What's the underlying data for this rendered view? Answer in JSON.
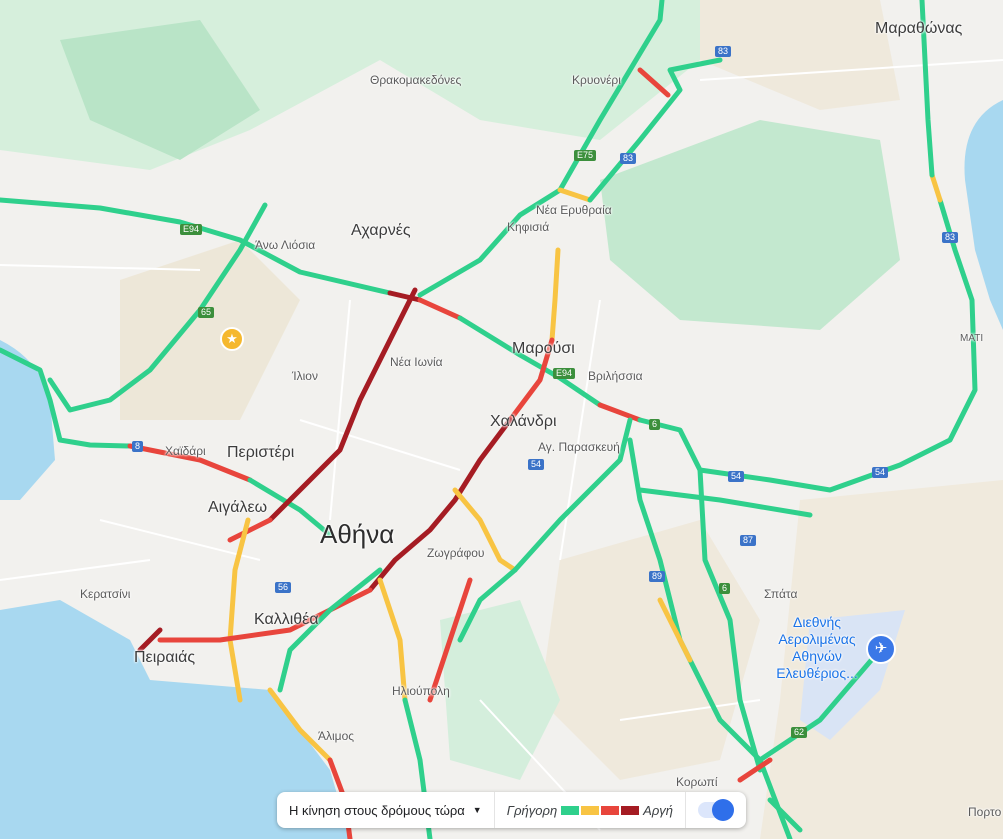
{
  "colors": {
    "fast": "#2fd08c",
    "moderate": "#f8c443",
    "slow": "#e8453c",
    "very_slow": "#a51c23",
    "water": "#a8d8f0",
    "park": "#c5ead2",
    "land": "#f0eadd"
  },
  "labels": {
    "marathonas": "Μαραθώνας",
    "thrakomakedones": "Θρακομακεδόνες",
    "kryoneri": "Κρυονέρι",
    "nea_erythraia": "Νέα Ερυθραία",
    "kifisia": "Κηφισιά",
    "acharnes": "Αχαρνές",
    "ano_liosia": "Άνω Λιόσια",
    "marousi": "Μαρούσι",
    "nea_ionia": "Νέα Ιωνία",
    "ilion": "Ίλιον",
    "vrilissia": "Βριλήσσια",
    "mati": "ΜΑΤΙ",
    "chalandri": "Χαλάνδρι",
    "ag_paraskevi": "Αγ. Παρασκευή",
    "chaidari": "Χαϊδάρι",
    "peristeri": "Περιστέρι",
    "aigaleo": "Αιγάλεω",
    "athina": "Αθήνα",
    "zografou": "Ζωγράφου",
    "keratsini": "Κερατσίνι",
    "spata": "Σπάτα",
    "kallithea": "Καλλιθέα",
    "peiraias": "Πειραιάς",
    "ilioupoli": "Ηλιούπολη",
    "alimos": "Άλιμος",
    "koropi": "Κορωπί",
    "porto": "Πορτο",
    "airport": "Διεθνής Αερολιμένας Αθηνών Ελευθέριος..."
  },
  "shields": {
    "e94a": "E94",
    "e94b": "E94",
    "e75": "E75",
    "r83a": "83",
    "r83b": "83",
    "r83c": "83",
    "r65": "65",
    "r8": "8",
    "r6a": "6",
    "r6b": "6",
    "r54a": "54",
    "r54b": "54",
    "r54c": "54",
    "r56": "56",
    "r87": "87",
    "r89": "89",
    "r62": "62"
  },
  "traffic_panel": {
    "mode_label": "Η κίνηση στους δρόμους τώρα",
    "fast_label": "Γρήγορη",
    "slow_label": "Αργή",
    "toggle_on": true
  },
  "icons": {
    "airport": "airplane-icon",
    "saved_place": "star-icon",
    "dropdown": "caret-down-icon"
  }
}
